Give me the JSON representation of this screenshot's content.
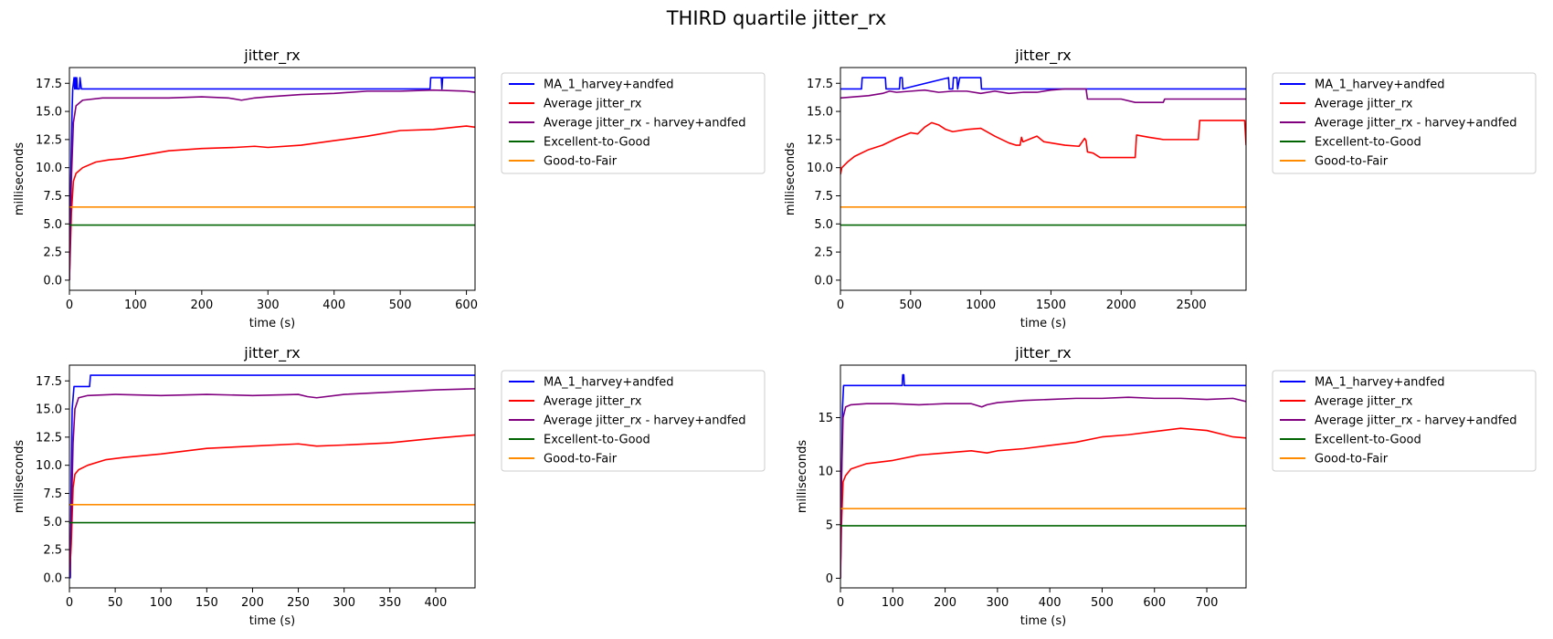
{
  "figure": {
    "title": "THIRD quartile jitter_rx"
  },
  "legend_entries": [
    {
      "label": "MA_1_harvey+andfed",
      "color": "#0000ff"
    },
    {
      "label": "Average jitter_rx",
      "color": "#ff0000"
    },
    {
      "label": "Average jitter_rx - harvey+andfed",
      "color": "#800080"
    },
    {
      "label": "Excellent-to-Good",
      "color": "#006400"
    },
    {
      "label": "Good-to-Fair",
      "color": "#ff8c00"
    }
  ],
  "chart_data": [
    {
      "type": "line",
      "title": "jitter_rx",
      "xlabel": "time (s)",
      "ylabel": "milliseconds",
      "xlim": [
        0,
        613
      ],
      "ylim": [
        -0.9,
        18.9
      ],
      "xticks": [
        0,
        100,
        200,
        300,
        400,
        500,
        600
      ],
      "yticks": [
        0.0,
        2.5,
        5.0,
        7.5,
        10.0,
        12.5,
        15.0,
        17.5
      ],
      "ytick_labels": [
        "0.0",
        "2.5",
        "5.0",
        "7.5",
        "10.0",
        "12.5",
        "15.0",
        "17.5"
      ],
      "grid": false,
      "legend": "outside-right",
      "series": [
        {
          "name": "MA_1_harvey+andfed",
          "color": "#0000ff",
          "x": [
            0,
            2,
            4,
            5,
            7,
            8,
            9,
            10,
            11,
            12,
            15,
            16,
            18,
            19,
            300,
            545,
            546,
            562,
            563,
            564,
            613
          ],
          "y": [
            0,
            9,
            15,
            17,
            18,
            17,
            18,
            17,
            18,
            17,
            17,
            18,
            17,
            17,
            17,
            17,
            18,
            18,
            17,
            18,
            18
          ]
        },
        {
          "name": "Average jitter_rx",
          "color": "#ff0000",
          "x": [
            0,
            3,
            6,
            10,
            20,
            40,
            60,
            80,
            100,
            150,
            200,
            250,
            280,
            300,
            350,
            400,
            450,
            500,
            550,
            600,
            613
          ],
          "y": [
            0,
            6,
            8.8,
            9.5,
            10.0,
            10.5,
            10.7,
            10.8,
            11.0,
            11.5,
            11.7,
            11.8,
            11.9,
            11.8,
            12.0,
            12.4,
            12.8,
            13.3,
            13.4,
            13.7,
            13.6
          ]
        },
        {
          "name": "Average jitter_rx - harvey+andfed",
          "color": "#800080",
          "x": [
            0,
            3,
            6,
            10,
            20,
            50,
            100,
            150,
            200,
            240,
            260,
            280,
            300,
            350,
            400,
            450,
            500,
            550,
            600,
            613
          ],
          "y": [
            0,
            9,
            14,
            15.5,
            16.0,
            16.2,
            16.2,
            16.2,
            16.3,
            16.2,
            16.0,
            16.2,
            16.3,
            16.5,
            16.6,
            16.8,
            16.8,
            16.9,
            16.8,
            16.7
          ]
        },
        {
          "name": "Excellent-to-Good",
          "color": "#006400",
          "x": [
            0,
            613
          ],
          "y": [
            4.9,
            4.9
          ]
        },
        {
          "name": "Good-to-Fair",
          "color": "#ff8c00",
          "x": [
            0,
            613
          ],
          "y": [
            6.5,
            6.5
          ]
        }
      ]
    },
    {
      "type": "line",
      "title": "jitter_rx",
      "xlabel": "time (s)",
      "ylabel": "milliseconds",
      "xlim": [
        0,
        2890
      ],
      "ylim": [
        -0.9,
        18.9
      ],
      "xticks": [
        0,
        500,
        1000,
        1500,
        2000,
        2500
      ],
      "yticks": [
        0.0,
        2.5,
        5.0,
        7.5,
        10.0,
        12.5,
        15.0,
        17.5
      ],
      "ytick_labels": [
        "0.0",
        "2.5",
        "5.0",
        "7.5",
        "10.0",
        "12.5",
        "15.0",
        "17.5"
      ],
      "grid": false,
      "legend": "outside-right",
      "series": [
        {
          "name": "MA_1_harvey+andfed",
          "color": "#0000ff",
          "x": [
            0,
            150,
            155,
            320,
            325,
            420,
            425,
            440,
            445,
            770,
            775,
            800,
            805,
            830,
            835,
            850,
            855,
            1000,
            1005,
            2890
          ],
          "y": [
            17,
            17,
            18,
            18,
            17,
            17,
            18,
            18,
            17,
            18,
            17,
            17,
            18,
            18,
            17,
            18,
            18,
            18,
            17,
            17
          ]
        },
        {
          "name": "Average jitter_rx",
          "color": "#ff0000",
          "x": [
            0,
            10,
            50,
            100,
            200,
            300,
            400,
            500,
            550,
            600,
            650,
            700,
            750,
            800,
            900,
            1000,
            1100,
            1200,
            1250,
            1280,
            1290,
            1300,
            1400,
            1450,
            1500,
            1600,
            1700,
            1740,
            1750,
            1760,
            1800,
            1850,
            1900,
            2000,
            2100,
            2110,
            2200,
            2300,
            2400,
            2550,
            2560,
            2850,
            2880,
            2890
          ],
          "y": [
            9.4,
            10.0,
            10.5,
            11.0,
            11.6,
            12.0,
            12.6,
            13.1,
            13.0,
            13.6,
            14.0,
            13.8,
            13.4,
            13.2,
            13.4,
            13.5,
            12.8,
            12.2,
            12.0,
            12.0,
            12.7,
            12.3,
            12.8,
            12.3,
            12.2,
            12.0,
            11.9,
            12.6,
            12.4,
            11.4,
            11.3,
            10.9,
            10.9,
            10.9,
            10.9,
            12.9,
            12.7,
            12.5,
            12.5,
            12.5,
            14.2,
            14.2,
            14.2,
            12.0
          ]
        },
        {
          "name": "Average jitter_rx - harvey+andfed",
          "color": "#800080",
          "x": [
            0,
            100,
            200,
            300,
            350,
            400,
            500,
            600,
            700,
            800,
            900,
            1000,
            1100,
            1200,
            1300,
            1400,
            1500,
            1600,
            1700,
            1750,
            1760,
            2000,
            2100,
            2300,
            2310,
            2890
          ],
          "y": [
            16.2,
            16.3,
            16.4,
            16.6,
            16.8,
            16.7,
            16.8,
            16.9,
            16.7,
            16.8,
            16.8,
            16.6,
            16.8,
            16.6,
            16.7,
            16.7,
            16.9,
            17.0,
            17.0,
            17.0,
            16.1,
            16.1,
            15.8,
            15.8,
            16.1,
            16.1
          ]
        },
        {
          "name": "Excellent-to-Good",
          "color": "#006400",
          "x": [
            0,
            2890
          ],
          "y": [
            4.9,
            4.9
          ]
        },
        {
          "name": "Good-to-Fair",
          "color": "#ff8c00",
          "x": [
            0,
            2890
          ],
          "y": [
            6.5,
            6.5
          ]
        }
      ]
    },
    {
      "type": "line",
      "title": "jitter_rx",
      "xlabel": "time (s)",
      "ylabel": "milliseconds",
      "xlim": [
        0,
        443
      ],
      "ylim": [
        -0.9,
        18.9
      ],
      "xticks": [
        0,
        50,
        100,
        150,
        200,
        250,
        300,
        350,
        400
      ],
      "yticks": [
        0.0,
        2.5,
        5.0,
        7.5,
        10.0,
        12.5,
        15.0,
        17.5
      ],
      "ytick_labels": [
        "0.0",
        "2.5",
        "5.0",
        "7.5",
        "10.0",
        "12.5",
        "15.0",
        "17.5"
      ],
      "grid": false,
      "legend": "outside-right",
      "series": [
        {
          "name": "MA_1_harvey+andfed",
          "color": "#0000ff",
          "x": [
            0,
            1,
            2,
            3,
            5,
            22,
            23,
            443
          ],
          "y": [
            0,
            0,
            9,
            15,
            17,
            17,
            18,
            18
          ]
        },
        {
          "name": "Average jitter_rx",
          "color": "#ff0000",
          "x": [
            0,
            2,
            4,
            6,
            10,
            20,
            40,
            60,
            100,
            150,
            200,
            250,
            270,
            300,
            350,
            400,
            443
          ],
          "y": [
            0,
            3,
            8,
            9.2,
            9.6,
            10.0,
            10.5,
            10.7,
            11.0,
            11.5,
            11.7,
            11.9,
            11.7,
            11.8,
            12.0,
            12.4,
            12.7
          ]
        },
        {
          "name": "Average jitter_rx - harvey+andfed",
          "color": "#800080",
          "x": [
            0,
            2,
            4,
            6,
            10,
            20,
            50,
            100,
            150,
            200,
            250,
            260,
            270,
            300,
            350,
            400,
            443
          ],
          "y": [
            0,
            5,
            12,
            15,
            16.0,
            16.2,
            16.3,
            16.2,
            16.3,
            16.2,
            16.3,
            16.1,
            16.0,
            16.3,
            16.5,
            16.7,
            16.8
          ]
        },
        {
          "name": "Excellent-to-Good",
          "color": "#006400",
          "x": [
            0,
            443
          ],
          "y": [
            4.9,
            4.9
          ]
        },
        {
          "name": "Good-to-Fair",
          "color": "#ff8c00",
          "x": [
            0,
            443
          ],
          "y": [
            6.5,
            6.5
          ]
        }
      ]
    },
    {
      "type": "line",
      "title": "jitter_rx",
      "xlabel": "time (s)",
      "ylabel": "milliseconds",
      "xlim": [
        0,
        775
      ],
      "ylim": [
        -0.9,
        19.9
      ],
      "xticks": [
        0,
        100,
        200,
        300,
        400,
        500,
        600,
        700
      ],
      "yticks": [
        0,
        5,
        10,
        15
      ],
      "ytick_labels": [
        "0",
        "5",
        "10",
        "15"
      ],
      "grid": false,
      "legend": "outside-right",
      "series": [
        {
          "name": "MA_1_harvey+andfed",
          "color": "#0000ff",
          "x": [
            0,
            2,
            4,
            6,
            118,
            119,
            121,
            122,
            775
          ],
          "y": [
            0,
            9,
            16,
            18,
            18,
            19,
            19,
            18,
            18
          ]
        },
        {
          "name": "Average jitter_rx",
          "color": "#ff0000",
          "x": [
            0,
            2,
            5,
            10,
            20,
            50,
            100,
            150,
            200,
            250,
            280,
            300,
            350,
            400,
            450,
            500,
            550,
            600,
            650,
            700,
            750,
            775
          ],
          "y": [
            0,
            5,
            9,
            9.6,
            10.2,
            10.7,
            11.0,
            11.5,
            11.7,
            11.9,
            11.7,
            11.9,
            12.1,
            12.4,
            12.7,
            13.2,
            13.4,
            13.7,
            14.0,
            13.8,
            13.2,
            13.1
          ]
        },
        {
          "name": "Average jitter_rx - harvey+andfed",
          "color": "#800080",
          "x": [
            0,
            2,
            5,
            10,
            20,
            50,
            100,
            150,
            200,
            250,
            270,
            280,
            300,
            350,
            400,
            450,
            500,
            550,
            600,
            650,
            700,
            750,
            775
          ],
          "y": [
            0,
            9,
            15,
            16.0,
            16.2,
            16.3,
            16.3,
            16.2,
            16.3,
            16.3,
            16.0,
            16.2,
            16.4,
            16.6,
            16.7,
            16.8,
            16.8,
            16.9,
            16.8,
            16.8,
            16.7,
            16.8,
            16.5
          ]
        },
        {
          "name": "Excellent-to-Good",
          "color": "#006400",
          "x": [
            0,
            775
          ],
          "y": [
            4.9,
            4.9
          ]
        },
        {
          "name": "Good-to-Fair",
          "color": "#ff8c00",
          "x": [
            0,
            775
          ],
          "y": [
            6.5,
            6.5
          ]
        }
      ]
    }
  ]
}
